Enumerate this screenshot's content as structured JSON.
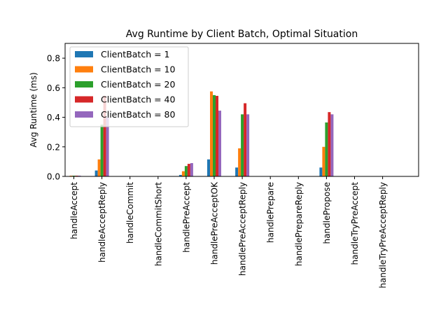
{
  "chart_data": {
    "type": "bar",
    "title": "Avg Runtime by Client Batch, Optimal Situation",
    "xlabel": "",
    "ylabel": "Avg Runtime (ms)",
    "ylim": [
      0,
      0.9
    ],
    "yticks": [
      0.0,
      0.2,
      0.4,
      0.6,
      0.8
    ],
    "ytick_labels": [
      "0.0",
      "0.2",
      "0.4",
      "0.6",
      "0.8"
    ],
    "grid": false,
    "legend_position": "top-left",
    "categories": [
      "handleAccept",
      "handleAcceptReply",
      "handleCommit",
      "handleCommitShort",
      "handlePreAccept",
      "handlePreAcceptOK",
      "handlePreAcceptReply",
      "handlePrepare",
      "handlePrepareReply",
      "handlePropose",
      "handleTryPreAccept",
      "handleTryPreAcceptReply"
    ],
    "series": [
      {
        "name": "ClientBatch = 1",
        "color": "#1f77b4",
        "values": [
          0.0,
          0.04,
          0.0,
          0.0,
          0.01,
          0.115,
          0.06,
          0.0,
          0.0,
          0.06,
          0.0,
          0.0
        ]
      },
      {
        "name": "ClientBatch = 10",
        "color": "#ff7f0e",
        "values": [
          0.005,
          0.115,
          0.0,
          0.0,
          0.035,
          0.575,
          0.19,
          0.0,
          0.0,
          0.2,
          0.0,
          0.0
        ]
      },
      {
        "name": "ClientBatch = 20",
        "color": "#2ca02c",
        "values": [
          0.005,
          0.35,
          0.0,
          0.0,
          0.07,
          0.55,
          0.42,
          0.0,
          0.0,
          0.365,
          0.0,
          0.0
        ]
      },
      {
        "name": "ClientBatch = 40",
        "color": "#d62728",
        "values": [
          0.005,
          0.545,
          0.0,
          0.0,
          0.085,
          0.545,
          0.495,
          0.0,
          0.0,
          0.435,
          0.0,
          0.0
        ]
      },
      {
        "name": "ClientBatch = 80",
        "color": "#9467bd",
        "values": [
          0.005,
          0.4,
          0.0,
          0.0,
          0.09,
          0.445,
          0.42,
          0.0,
          0.0,
          0.42,
          0.0,
          0.0
        ]
      }
    ]
  }
}
